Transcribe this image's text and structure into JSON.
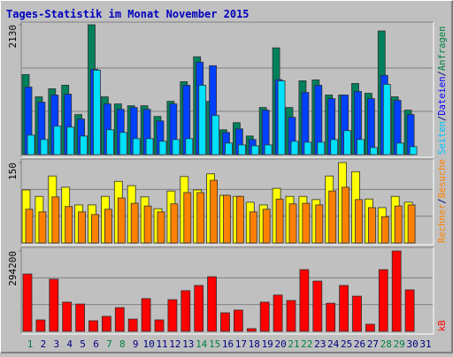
{
  "title": "Tages-Statistik im Monat November 2015",
  "legend_separator": "/",
  "chart_data": [
    {
      "type": "bar",
      "ylim": [
        0,
        2130
      ],
      "yticks": [
        2130
      ],
      "series": [
        {
          "name": "Anfragen",
          "color": "#00805c",
          "text_color": "#008040",
          "values": [
            1313,
            948,
            1080,
            1138,
            657,
            2130,
            948,
            832,
            802,
            802,
            627,
            875,
            1196,
            1605,
            875,
            408,
            525,
            306,
            773,
            1751,
            773,
            1211,
            1226,
            978,
            978,
            1167,
            1007,
            2028,
            948,
            730,
            null
          ]
        },
        {
          "name": "Dateien",
          "color": "#0040ff",
          "text_color": "#0000ff",
          "values": [
            1109,
            861,
            978,
            992,
            584,
            1400,
            832,
            744,
            773,
            744,
            554,
            832,
            1138,
            1517,
            1459,
            365,
            423,
            248,
            730,
            1230,
            613,
            1021,
            1138,
            919,
            978,
            1036,
            919,
            1300,
            890,
            657,
            null
          ]
        },
        {
          "name": "Seiten",
          "color": "#00e0ff",
          "text_color": "#00c0ff",
          "values": [
            321,
            248,
            467,
            452,
            306,
            1386,
            409,
            365,
            263,
            263,
            219,
            248,
            263,
            1138,
            642,
            190,
            160,
            146,
            160,
            1211,
            219,
            204,
            204,
            248,
            394,
            248,
            117,
            1153,
            190,
            131,
            null
          ]
        }
      ]
    },
    {
      "type": "bar",
      "ylim": [
        0,
        150
      ],
      "yticks": [
        150
      ],
      "series": [
        {
          "name": "Besuche",
          "color": "#ffff00",
          "text_color": "#ff8000",
          "values": [
            99,
            87,
            125,
            104,
            71,
            71,
            87,
            115,
            107,
            86,
            64,
            97,
            124,
            99,
            129,
            89,
            87,
            76,
            71,
            102,
            87,
            87,
            81,
            125,
            150,
            133,
            82,
            66,
            87,
            76,
            null
          ]
        },
        {
          "name": "Rechner",
          "color": "#ff8000",
          "text_color": "#ff8000",
          "values": [
            63,
            58,
            86,
            68,
            58,
            53,
            63,
            84,
            74,
            69,
            58,
            73,
            94,
            94,
            117,
            89,
            87,
            58,
            63,
            82,
            73,
            74,
            71,
            97,
            104,
            81,
            66,
            49,
            69,
            71,
            null
          ]
        }
      ]
    },
    {
      "type": "bar",
      "ylim": [
        0,
        294200
      ],
      "yticks": [
        294200
      ],
      "categories": [
        "1",
        "2",
        "3",
        "4",
        "5",
        "6",
        "7",
        "8",
        "9",
        "10",
        "11",
        "12",
        "13",
        "14",
        "15",
        "16",
        "17",
        "18",
        "19",
        "20",
        "21",
        "22",
        "23",
        "24",
        "25",
        "26",
        "27",
        "28",
        "29",
        "30",
        "31"
      ],
      "category_colors": [
        "#008040",
        "#000080",
        "#000080",
        "#000080",
        "#000080",
        "#000080",
        "#008040",
        "#008040",
        "#000080",
        "#000080",
        "#000080",
        "#000080",
        "#000080",
        "#008040",
        "#008040",
        "#000080",
        "#000080",
        "#000080",
        "#000080",
        "#000080",
        "#008040",
        "#008040",
        "#000080",
        "#000080",
        "#000080",
        "#000080",
        "#000080",
        "#008040",
        "#008040",
        "#000080",
        "#000080"
      ],
      "series": [
        {
          "name": "kB",
          "color": "#ff0000",
          "text_color": "#ff0000",
          "values": [
            210000,
            42000,
            191000,
            107000,
            100000,
            39000,
            55000,
            87000,
            45000,
            120000,
            42000,
            116000,
            149000,
            168000,
            200000,
            68000,
            78000,
            10000,
            107000,
            133000,
            113000,
            226000,
            184000,
            103000,
            168000,
            129000,
            26000,
            226000,
            294200,
            152000,
            null
          ]
        }
      ]
    }
  ]
}
